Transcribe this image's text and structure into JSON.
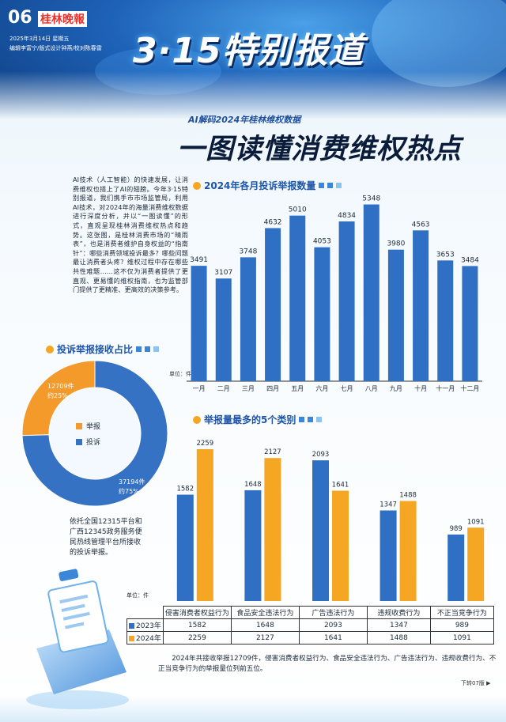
{
  "header": {
    "page_no": "06",
    "paper_name": "桂林晚報",
    "issue_date": "2025年3月14日 星期五",
    "staff": "编辑李富宁/版式设计钟燕/校对陈春雷",
    "special_title": "3·15特别报道"
  },
  "article": {
    "kicker": "AI解码2024年桂林维权数据",
    "headline": "一图读懂消费维权热点",
    "intro": "AI技术（人工智能）的快速发展，让消费维权也搭上了AI的翅膀。今年3·15特别报道，我们携手市市场监管局，利用AI技术，对2024年的海量消费维权数据进行深度分析，并以“一图读懂”的形式，直观呈现桂林消费维权热点和趋势。这张图，是桂林消费市场的“晴雨表”，也是消费者维护自身权益的“指南针”：哪些消费领域投诉最多？哪些问题最让消费者头疼？维权过程中存在哪些共性难题……这不仅为消费者提供了更直观、更易懂的维权指南，也为监管部门提供了更精准、更高效的决策参考。",
    "summary": "2024年共接收举报12709件，侵害消费者权益行为、食品安全违法行为、广告违法行为、违规收费行为、不正当竞争行为的举报量位列前五位。",
    "jump": "下转07版"
  },
  "colors": {
    "bar_blue": "#2f6fc4",
    "bar_orange": "#f5a623",
    "pie_report": "#f39a2b",
    "pie_complaint": "#3572c4",
    "accent": "#1e55a8"
  },
  "monthly": {
    "section_title": "2024年各月投诉举报数量",
    "unit": "单位：件"
  },
  "pie": {
    "section_title": "投诉举报接收占比",
    "legend_report": "举报",
    "legend_complaint": "投诉",
    "label_report_count": "12709件",
    "label_report_pct": "约25%",
    "label_complaint_count": "37194件",
    "label_complaint_pct": "约75%",
    "note": "依托全国12315平台和广西12345政务服务便民热线管理平台所接收的投诉举报。"
  },
  "categories": {
    "section_title": "举报量最多的5个类别",
    "unit": "单位：件",
    "row_label_2023": "2023年",
    "row_label_2024": "2024年"
  },
  "chart_data": [
    {
      "type": "bar",
      "title": "2024年各月投诉举报数量",
      "ylabel": "单位：件",
      "categories": [
        "一月",
        "二月",
        "三月",
        "四月",
        "五月",
        "六月",
        "七月",
        "八月",
        "九月",
        "十月",
        "十一月",
        "十二月"
      ],
      "values": [
        3491,
        3107,
        3748,
        4632,
        5010,
        4053,
        4834,
        5348,
        3980,
        4563,
        3653,
        3484
      ],
      "ylim": [
        0,
        5600
      ]
    },
    {
      "type": "pie",
      "title": "投诉举报接收占比",
      "categories": [
        "举报",
        "投诉"
      ],
      "values": [
        12709,
        37194
      ],
      "percent": [
        25,
        75
      ]
    },
    {
      "type": "bar",
      "title": "举报量最多的5个类别",
      "ylabel": "单位：件",
      "categories": [
        "侵害消费者权益行为",
        "食品安全违法行为",
        "广告违法行为",
        "违规收费行为",
        "不正当竞争行为"
      ],
      "series": [
        {
          "name": "2023年",
          "values": [
            1582,
            1648,
            2093,
            1347,
            989
          ]
        },
        {
          "name": "2024年",
          "values": [
            2259,
            2127,
            1641,
            1488,
            1091
          ]
        }
      ],
      "ylim": [
        0,
        2400
      ]
    }
  ]
}
